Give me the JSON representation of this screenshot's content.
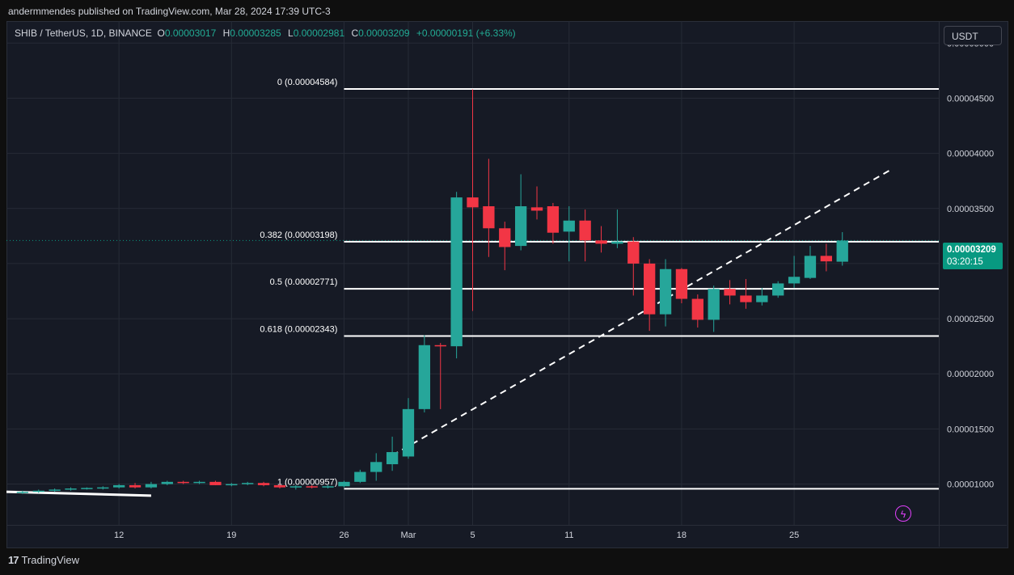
{
  "caption": "andermmendes published on TradingView.com, Mar 28, 2024 17:39 UTC-3",
  "legend": {
    "symbol": "SHIB / TetherUS, 1D, BINANCE",
    "o_label": "O",
    "o": "0.00003017",
    "h_label": "H",
    "h": "0.00003285",
    "l_label": "L",
    "l": "0.00002981",
    "c_label": "C",
    "c": "0.00003209",
    "change": "+0.00000191 (+6.33%)"
  },
  "currency_button": "USDT",
  "last_price": "0.00003209",
  "countdown": "03:20:15",
  "footer": "TradingView",
  "colors": {
    "up": "#26a69a",
    "down": "#f23645",
    "background": "#161a25",
    "grid": "#262b36",
    "accent": "#089981"
  },
  "icons": {
    "logo": "tradingview-logo-icon",
    "lightning": "lightning-icon"
  },
  "chart_data": {
    "type": "candlestick",
    "y_axis": {
      "ticks": [
        "0.00005000",
        "0.00004500",
        "0.00004000",
        "0.00003500",
        "0.00003000",
        "0.00002500",
        "0.00002000",
        "0.00001500",
        "0.00001000"
      ],
      "tick_values": [
        5e-05,
        4.5e-05,
        4e-05,
        3.5e-05,
        3e-05,
        2.5e-05,
        2e-05,
        1.5e-05,
        1e-05
      ],
      "range": [
        6.3e-06,
        5.2e-05
      ]
    },
    "x_axis": {
      "ticks": [
        "12",
        "19",
        "26",
        "Mar",
        "5",
        "11",
        "18",
        "25"
      ],
      "tick_dates": [
        "2024-02-12",
        "2024-02-19",
        "2024-02-26",
        "2024-03-01",
        "2024-03-05",
        "2024-03-11",
        "2024-03-18",
        "2024-03-25"
      ],
      "range": [
        "2024-02-05",
        "2024-04-03"
      ]
    },
    "fib_levels": [
      {
        "label": "0 (0.00004584)",
        "value": 4.584e-05
      },
      {
        "label": "0.382 (0.00003198)",
        "value": 3.198e-05
      },
      {
        "label": "0.5 (0.00002771)",
        "value": 2.771e-05
      },
      {
        "label": "0.618 (0.00002343)",
        "value": 2.343e-05
      },
      {
        "label": "1 (0.00000957)",
        "value": 9.57e-06
      }
    ],
    "fib_start_date": "2024-02-26",
    "trend_line": {
      "from": [
        "2024-02-29",
        1.26e-05
      ],
      "to": [
        "2024-03-31",
        3.85e-05
      ]
    },
    "early_trend_line": {
      "from": [
        "2024-02-05",
        9.3e-06
      ],
      "to": [
        "2024-02-14",
        8.95e-06
      ]
    },
    "candles": [
      {
        "d": "2024-02-06",
        "o": 9.25e-06,
        "h": 9.4e-06,
        "l": 9.1e-06,
        "c": 9.3e-06
      },
      {
        "d": "2024-02-07",
        "o": 9.3e-06,
        "h": 9.5e-06,
        "l": 9.2e-06,
        "c": 9.4e-06
      },
      {
        "d": "2024-02-08",
        "o": 9.4e-06,
        "h": 9.6e-06,
        "l": 9.3e-06,
        "c": 9.5e-06
      },
      {
        "d": "2024-02-09",
        "o": 9.5e-06,
        "h": 9.7e-06,
        "l": 9.4e-06,
        "c": 9.6e-06
      },
      {
        "d": "2024-02-10",
        "o": 9.6e-06,
        "h": 9.7e-06,
        "l": 9.5e-06,
        "c": 9.65e-06
      },
      {
        "d": "2024-02-11",
        "o": 9.65e-06,
        "h": 9.8e-06,
        "l": 9.5e-06,
        "c": 9.7e-06
      },
      {
        "d": "2024-02-12",
        "o": 9.7e-06,
        "h": 1e-05,
        "l": 9.6e-06,
        "c": 9.9e-06
      },
      {
        "d": "2024-02-13",
        "o": 9.9e-06,
        "h": 1.01e-05,
        "l": 9.6e-06,
        "c": 9.7e-06
      },
      {
        "d": "2024-02-14",
        "o": 9.7e-06,
        "h": 1.02e-05,
        "l": 9.6e-06,
        "c": 1e-05
      },
      {
        "d": "2024-02-15",
        "o": 1e-05,
        "h": 1.03e-05,
        "l": 9.9e-06,
        "c": 1.02e-05
      },
      {
        "d": "2024-02-16",
        "o": 1.02e-05,
        "h": 1.03e-05,
        "l": 1e-05,
        "c": 1.01e-05
      },
      {
        "d": "2024-02-17",
        "o": 1.01e-05,
        "h": 1.03e-05,
        "l": 1e-05,
        "c": 1.02e-05
      },
      {
        "d": "2024-02-18",
        "o": 1.02e-05,
        "h": 1.03e-05,
        "l": 9.9e-06,
        "c": 9.9e-06
      },
      {
        "d": "2024-02-19",
        "o": 9.9e-06,
        "h": 1.01e-05,
        "l": 9.8e-06,
        "c": 1e-05
      },
      {
        "d": "2024-02-20",
        "o": 1e-05,
        "h": 1.02e-05,
        "l": 9.9e-06,
        "c": 1.01e-05
      },
      {
        "d": "2024-02-21",
        "o": 1.01e-05,
        "h": 1.02e-05,
        "l": 9.8e-06,
        "c": 9.9e-06
      },
      {
        "d": "2024-02-22",
        "o": 9.9e-06,
        "h": 1e-05,
        "l": 9.6e-06,
        "c": 9.7e-06
      },
      {
        "d": "2024-02-23",
        "o": 9.7e-06,
        "h": 9.9e-06,
        "l": 9.5e-06,
        "c": 9.8e-06
      },
      {
        "d": "2024-02-24",
        "o": 9.8e-06,
        "h": 9.9e-06,
        "l": 9.6e-06,
        "c": 9.7e-06
      },
      {
        "d": "2024-02-25",
        "o": 9.7e-06,
        "h": 9.9e-06,
        "l": 9.6e-06,
        "c": 9.8e-06
      },
      {
        "d": "2024-02-26",
        "o": 9.8e-06,
        "h": 1.03e-05,
        "l": 9.7e-06,
        "c": 1.02e-05
      },
      {
        "d": "2024-02-27",
        "o": 1.02e-05,
        "h": 1.13e-05,
        "l": 1.01e-05,
        "c": 1.11e-05
      },
      {
        "d": "2024-02-28",
        "o": 1.11e-05,
        "h": 1.28e-05,
        "l": 1.03e-05,
        "c": 1.2e-05
      },
      {
        "d": "2024-02-29",
        "o": 1.18e-05,
        "h": 1.43e-05,
        "l": 1.12e-05,
        "c": 1.29e-05
      },
      {
        "d": "2024-03-01",
        "o": 1.25e-05,
        "h": 1.78e-05,
        "l": 1.23e-05,
        "c": 1.68e-05
      },
      {
        "d": "2024-03-02",
        "o": 1.68e-05,
        "h": 2.35e-05,
        "l": 1.65e-05,
        "c": 2.26e-05
      },
      {
        "d": "2024-03-03",
        "o": 2.26e-05,
        "h": 2.28e-05,
        "l": 1.68e-05,
        "c": 2.25e-05
      },
      {
        "d": "2024-03-04",
        "o": 2.25e-05,
        "h": 3.65e-05,
        "l": 2.14e-05,
        "c": 3.6e-05
      },
      {
        "d": "2024-03-05",
        "o": 3.6e-05,
        "h": 4.58e-05,
        "l": 2.57e-05,
        "c": 3.51e-05
      },
      {
        "d": "2024-03-06",
        "o": 3.52e-05,
        "h": 3.95e-05,
        "l": 3.06e-05,
        "c": 3.32e-05
      },
      {
        "d": "2024-03-07",
        "o": 3.32e-05,
        "h": 3.38e-05,
        "l": 2.94e-05,
        "c": 3.15e-05
      },
      {
        "d": "2024-03-08",
        "o": 3.16e-05,
        "h": 3.81e-05,
        "l": 3.12e-05,
        "c": 3.52e-05
      },
      {
        "d": "2024-03-09",
        "o": 3.51e-05,
        "h": 3.7e-05,
        "l": 3.4e-05,
        "c": 3.48e-05
      },
      {
        "d": "2024-03-10",
        "o": 3.52e-05,
        "h": 3.55e-05,
        "l": 3.18e-05,
        "c": 3.28e-05
      },
      {
        "d": "2024-03-11",
        "o": 3.29e-05,
        "h": 3.52e-05,
        "l": 3.02e-05,
        "c": 3.39e-05
      },
      {
        "d": "2024-03-12",
        "o": 3.39e-05,
        "h": 3.49e-05,
        "l": 3.02e-05,
        "c": 3.21e-05
      },
      {
        "d": "2024-03-13",
        "o": 3.21e-05,
        "h": 3.34e-05,
        "l": 3.1e-05,
        "c": 3.18e-05
      },
      {
        "d": "2024-03-14",
        "o": 3.18e-05,
        "h": 3.49e-05,
        "l": 3.14e-05,
        "c": 3.2e-05
      },
      {
        "d": "2024-03-15",
        "o": 3.2e-05,
        "h": 3.24e-05,
        "l": 2.71e-05,
        "c": 3e-05
      },
      {
        "d": "2024-03-16",
        "o": 3e-05,
        "h": 3.04e-05,
        "l": 2.39e-05,
        "c": 2.54e-05
      },
      {
        "d": "2024-03-17",
        "o": 2.54e-05,
        "h": 3.04e-05,
        "l": 2.43e-05,
        "c": 2.95e-05
      },
      {
        "d": "2024-03-18",
        "o": 2.95e-05,
        "h": 2.96e-05,
        "l": 2.64e-05,
        "c": 2.68e-05
      },
      {
        "d": "2024-03-19",
        "o": 2.68e-05,
        "h": 2.72e-05,
        "l": 2.42e-05,
        "c": 2.49e-05
      },
      {
        "d": "2024-03-20",
        "o": 2.49e-05,
        "h": 2.8e-05,
        "l": 2.38e-05,
        "c": 2.77e-05
      },
      {
        "d": "2024-03-21",
        "o": 2.77e-05,
        "h": 2.85e-05,
        "l": 2.63e-05,
        "c": 2.71e-05
      },
      {
        "d": "2024-03-22",
        "o": 2.71e-05,
        "h": 2.86e-05,
        "l": 2.59e-05,
        "c": 2.65e-05
      },
      {
        "d": "2024-03-23",
        "o": 2.65e-05,
        "h": 2.78e-05,
        "l": 2.62e-05,
        "c": 2.71e-05
      },
      {
        "d": "2024-03-24",
        "o": 2.71e-05,
        "h": 2.84e-05,
        "l": 2.69e-05,
        "c": 2.82e-05
      },
      {
        "d": "2024-03-25",
        "o": 2.82e-05,
        "h": 3.07e-05,
        "l": 2.78e-05,
        "c": 2.88e-05
      },
      {
        "d": "2024-03-26",
        "o": 2.87e-05,
        "h": 3.16e-05,
        "l": 2.86e-05,
        "c": 3.07e-05
      },
      {
        "d": "2024-03-27",
        "o": 3.07e-05,
        "h": 3.18e-05,
        "l": 2.93e-05,
        "c": 3.02e-05
      },
      {
        "d": "2024-03-28",
        "o": 3.017e-05,
        "h": 3.285e-05,
        "l": 2.981e-05,
        "c": 3.209e-05
      }
    ]
  }
}
